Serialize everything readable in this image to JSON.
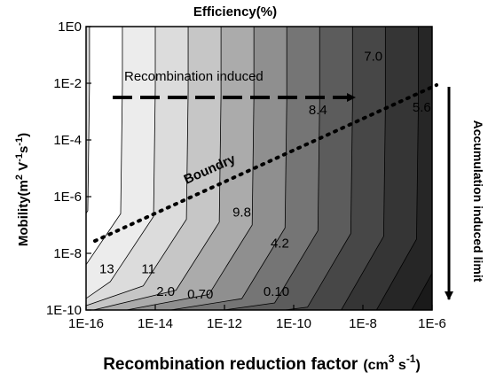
{
  "chart_data": {
    "type": "contour",
    "title": "Efficiency(%)",
    "xlabel": "Recombination reduction factor",
    "xlabel_unit_base": "(cm",
    "xlabel_unit_exp": "3",
    "xlabel_unit_mid": " s",
    "xlabel_unit_exp2": "-1",
    "xlabel_unit_end": ")",
    "ylabel_base": "Mobility(m",
    "ylabel_exp1": "2",
    "ylabel_mid1": " V",
    "ylabel_exp2": "-1",
    "ylabel_mid2": "s",
    "ylabel_exp3": "-1",
    "ylabel_end": ")",
    "right_label": "Accumulation induced limit",
    "x_scale": "log",
    "y_scale": "log",
    "xlim": [
      1e-16,
      1e-06
    ],
    "ylim": [
      1e-10,
      1
    ],
    "x_ticks": [
      {
        "label": "1E-16",
        "exp": -16
      },
      {
        "label": "1E-14",
        "exp": -14
      },
      {
        "label": "1E-12",
        "exp": -12
      },
      {
        "label": "1E-10",
        "exp": -10
      },
      {
        "label": "1E-8",
        "exp": -8
      },
      {
        "label": "1E-6",
        "exp": -6
      }
    ],
    "y_ticks": [
      {
        "label": "1E0",
        "exp": 0
      },
      {
        "label": "1E-2",
        "exp": -2
      },
      {
        "label": "1E-4",
        "exp": -4
      },
      {
        "label": "1E-6",
        "exp": -6
      },
      {
        "label": "1E-8",
        "exp": -8
      },
      {
        "label": "1E-10",
        "exp": -10
      }
    ],
    "contour_labels": [
      {
        "text": "7.0",
        "x_exp": -7.7,
        "y_exp": -1.2
      },
      {
        "text": "8.4",
        "x_exp": -9.3,
        "y_exp": -3.1
      },
      {
        "text": "5.6",
        "x_exp": -6.3,
        "y_exp": -3.0
      },
      {
        "text": "9.8",
        "x_exp": -11.5,
        "y_exp": -6.7
      },
      {
        "text": "4.2",
        "x_exp": -10.4,
        "y_exp": -7.8
      },
      {
        "text": "13",
        "x_exp": -15.4,
        "y_exp": -8.7
      },
      {
        "text": "11",
        "x_exp": -14.2,
        "y_exp": -8.7
      },
      {
        "text": "2.0",
        "x_exp": -13.7,
        "y_exp": -9.5
      },
      {
        "text": "0.70",
        "x_exp": -12.7,
        "y_exp": -9.6
      },
      {
        "text": "0.10",
        "x_exp": -10.5,
        "y_exp": -9.5
      }
    ],
    "annotations": {
      "recombination_induced": "Recombination induced",
      "boundary": "Boundry"
    }
  }
}
